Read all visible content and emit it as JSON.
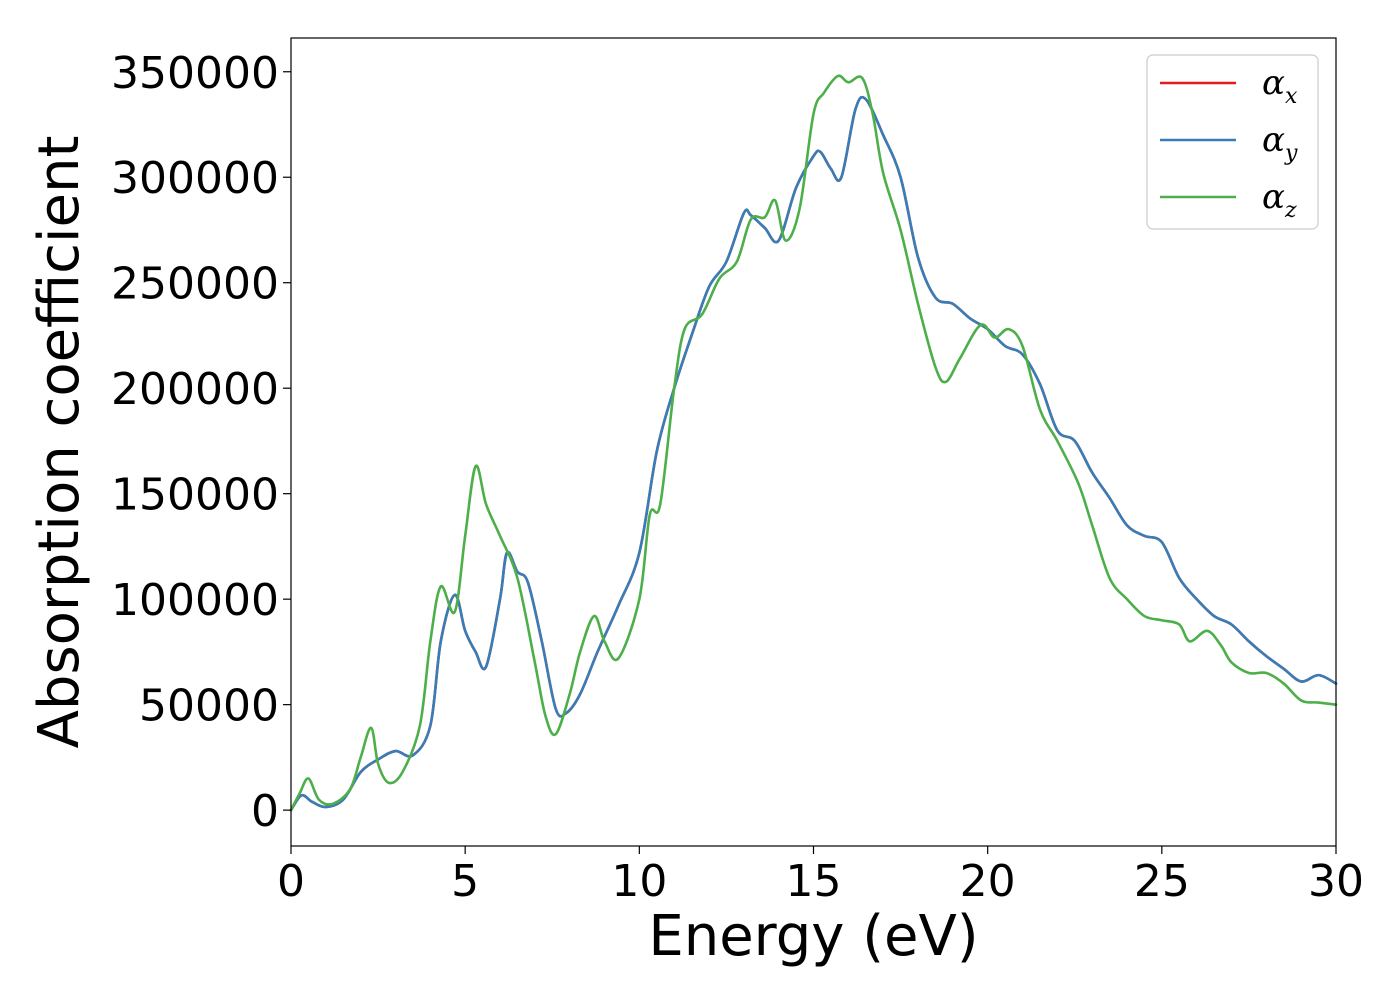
{
  "chart_data": {
    "type": "line",
    "xlabel": "Energy (eV)",
    "ylabel": "Absorption coefficient",
    "xlim": [
      0,
      30
    ],
    "ylim": [
      -17000,
      366000
    ],
    "xticks": [
      0,
      5,
      10,
      15,
      20,
      25,
      30
    ],
    "xtick_labels": [
      "0",
      "5",
      "10",
      "15",
      "20",
      "25",
      "30"
    ],
    "yticks": [
      0,
      50000,
      100000,
      150000,
      200000,
      250000,
      300000,
      350000
    ],
    "ytick_labels": [
      "0",
      "50000",
      "100000",
      "150000",
      "200000",
      "250000",
      "300000",
      "350000"
    ],
    "grid": false,
    "legend_position": "top-right",
    "series": [
      {
        "name": "α",
        "subscript": "x",
        "color": "#e41a1c",
        "x": [
          0,
          0.3,
          0.6,
          1.0,
          1.5,
          2.0,
          2.5,
          3.0,
          3.5,
          4.0,
          4.3,
          4.7,
          5.0,
          5.3,
          5.6,
          6.0,
          6.2,
          6.5,
          6.8,
          7.2,
          7.6,
          7.9,
          8.3,
          8.8,
          9.4,
          10.0,
          10.5,
          11.0,
          11.5,
          12.0,
          12.5,
          13.0,
          13.2,
          13.6,
          14.0,
          14.5,
          15.0,
          15.2,
          15.5,
          15.8,
          16.2,
          16.5,
          17.0,
          17.5,
          18.0,
          18.5,
          19.0,
          19.5,
          20.0,
          20.5,
          21.0,
          21.5,
          22.0,
          22.5,
          23.0,
          23.5,
          24.0,
          24.5,
          25.0,
          25.5,
          26.0,
          26.5,
          27.0,
          27.5,
          28.0,
          28.5,
          29.0,
          29.5,
          30.0
        ],
        "y": [
          0,
          7000,
          4000,
          1500,
          5000,
          18000,
          24000,
          28000,
          26000,
          40000,
          80000,
          102000,
          85000,
          75000,
          68000,
          100000,
          122000,
          113000,
          108000,
          80000,
          48000,
          46000,
          55000,
          75000,
          97000,
          122000,
          170000,
          200000,
          225000,
          248000,
          260000,
          283000,
          282000,
          276000,
          270000,
          295000,
          310000,
          312000,
          304000,
          300000,
          332000,
          337000,
          320000,
          300000,
          262000,
          243000,
          240000,
          233000,
          228000,
          220000,
          216000,
          202000,
          180000,
          175000,
          160000,
          148000,
          135000,
          130000,
          127000,
          110000,
          100000,
          92000,
          88000,
          80000,
          73000,
          67000,
          61000,
          64000,
          60000
        ]
      },
      {
        "name": "α",
        "subscript": "y",
        "color": "#377eb8",
        "x": [
          0,
          0.3,
          0.6,
          1.0,
          1.5,
          2.0,
          2.5,
          3.0,
          3.5,
          4.0,
          4.3,
          4.7,
          5.0,
          5.3,
          5.6,
          6.0,
          6.2,
          6.5,
          6.8,
          7.2,
          7.6,
          7.9,
          8.3,
          8.8,
          9.4,
          10.0,
          10.5,
          11.0,
          11.5,
          12.0,
          12.5,
          13.0,
          13.2,
          13.6,
          14.0,
          14.5,
          15.0,
          15.2,
          15.5,
          15.8,
          16.2,
          16.5,
          17.0,
          17.5,
          18.0,
          18.5,
          19.0,
          19.5,
          20.0,
          20.5,
          21.0,
          21.5,
          22.0,
          22.5,
          23.0,
          23.5,
          24.0,
          24.5,
          25.0,
          25.5,
          26.0,
          26.5,
          27.0,
          27.5,
          28.0,
          28.5,
          29.0,
          29.5,
          30.0
        ],
        "y": [
          0,
          7000,
          4000,
          1500,
          5000,
          18000,
          24000,
          28000,
          26000,
          40000,
          80000,
          102000,
          85000,
          75000,
          68000,
          100000,
          122000,
          113000,
          108000,
          80000,
          48000,
          46000,
          55000,
          75000,
          97000,
          122000,
          170000,
          200000,
          225000,
          248000,
          260000,
          283000,
          282000,
          276000,
          270000,
          295000,
          310000,
          312000,
          304000,
          300000,
          332000,
          337000,
          320000,
          300000,
          262000,
          243000,
          240000,
          233000,
          228000,
          220000,
          216000,
          202000,
          180000,
          175000,
          160000,
          148000,
          135000,
          130000,
          127000,
          110000,
          100000,
          92000,
          88000,
          80000,
          73000,
          67000,
          61000,
          64000,
          60000
        ]
      },
      {
        "name": "α",
        "subscript": "z",
        "color": "#4daf4a",
        "x": [
          0,
          0.25,
          0.5,
          0.8,
          1.2,
          1.7,
          2.0,
          2.3,
          2.5,
          2.8,
          3.2,
          3.7,
          4.0,
          4.3,
          4.7,
          5.0,
          5.3,
          5.6,
          6.0,
          6.5,
          7.0,
          7.3,
          7.6,
          8.0,
          8.3,
          8.7,
          9.0,
          9.4,
          10.0,
          10.3,
          10.6,
          11.0,
          11.3,
          11.8,
          12.3,
          12.8,
          13.2,
          13.6,
          13.9,
          14.2,
          14.6,
          15.0,
          15.3,
          15.7,
          16.0,
          16.4,
          16.7,
          17.0,
          17.5,
          18.0,
          18.5,
          18.8,
          19.2,
          19.8,
          20.2,
          20.6,
          21.0,
          21.5,
          22.0,
          22.6,
          23.0,
          23.5,
          24.0,
          24.5,
          25.0,
          25.5,
          25.8,
          26.3,
          26.7,
          27.0,
          27.5,
          28.0,
          28.5,
          29.0,
          29.5,
          30.0
        ],
        "y": [
          0,
          8000,
          15000,
          5000,
          3000,
          10000,
          25000,
          39000,
          22000,
          13000,
          18000,
          40000,
          80000,
          106000,
          94000,
          130000,
          163000,
          145000,
          130000,
          110000,
          70000,
          45000,
          36000,
          55000,
          75000,
          92000,
          80000,
          72000,
          100000,
          140000,
          145000,
          200000,
          228000,
          235000,
          252000,
          260000,
          280000,
          281000,
          289000,
          270000,
          285000,
          330000,
          340000,
          348000,
          345000,
          347000,
          330000,
          302000,
          275000,
          240000,
          210000,
          203000,
          214000,
          230000,
          224000,
          228000,
          220000,
          190000,
          175000,
          155000,
          135000,
          110000,
          100000,
          92000,
          90000,
          88000,
          80000,
          85000,
          78000,
          70000,
          65000,
          65000,
          60000,
          52000,
          51000,
          50000
        ]
      }
    ]
  }
}
